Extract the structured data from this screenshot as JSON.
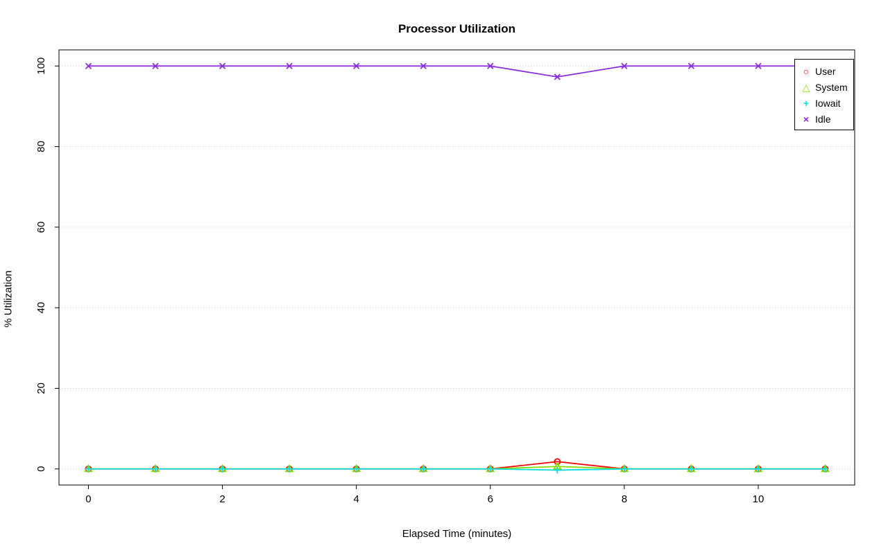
{
  "chart_data": {
    "type": "line",
    "title": "Processor Utilization",
    "xlabel": "Elapsed Time (minutes)",
    "ylabel": "% Utilization",
    "x": [
      0,
      1,
      2,
      3,
      4,
      5,
      6,
      7,
      8,
      9,
      10,
      11
    ],
    "xticks": [
      0,
      2,
      4,
      6,
      8,
      10
    ],
    "yticks": [
      0,
      20,
      40,
      60,
      80,
      100
    ],
    "xlim": [
      0,
      11
    ],
    "ylim": [
      0,
      100
    ],
    "grid": "horizontal-dotted",
    "grid_color": "#c9c9c9",
    "legend_position": "top-right",
    "series": [
      {
        "name": "User",
        "color": "#ff0000",
        "marker": "circle",
        "values": [
          0,
          0,
          0,
          0,
          0,
          0,
          0,
          1.8,
          0,
          0,
          0,
          0
        ]
      },
      {
        "name": "System",
        "color": "#84dd00",
        "marker": "triangle",
        "values": [
          0,
          0,
          0,
          0,
          0,
          0,
          0,
          0.6,
          0,
          0,
          0,
          0
        ]
      },
      {
        "name": "Iowait",
        "color": "#00dde4",
        "marker": "plus",
        "values": [
          0,
          0,
          0,
          0,
          0,
          0,
          0,
          -0.3,
          0,
          0,
          0,
          0
        ]
      },
      {
        "name": "Idle",
        "color": "#8a2be2",
        "marker": "x",
        "values": [
          100,
          100,
          100,
          100,
          100,
          100,
          100,
          97.3,
          100,
          100,
          100,
          100
        ]
      }
    ]
  }
}
